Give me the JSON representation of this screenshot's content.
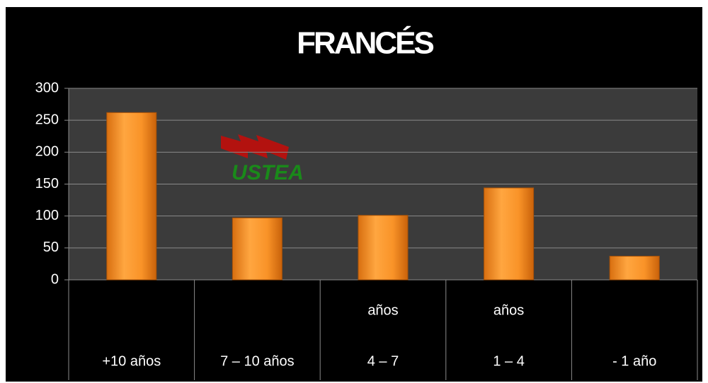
{
  "chart_data": {
    "type": "bar",
    "title": "FRANCÉS",
    "logo": "USTEA",
    "categories": [
      [
        "+10 años"
      ],
      [
        "7 – 10 años"
      ],
      [
        "años",
        "4 – 7"
      ],
      [
        "años",
        "1 – 4"
      ],
      [
        "- 1 año"
      ]
    ],
    "values": [
      262,
      97,
      101,
      144,
      37
    ],
    "color": "#f7941d",
    "ylim": [
      0,
      300
    ],
    "yticks": [
      0,
      50,
      100,
      150,
      200,
      250,
      300
    ],
    "grid": true
  }
}
